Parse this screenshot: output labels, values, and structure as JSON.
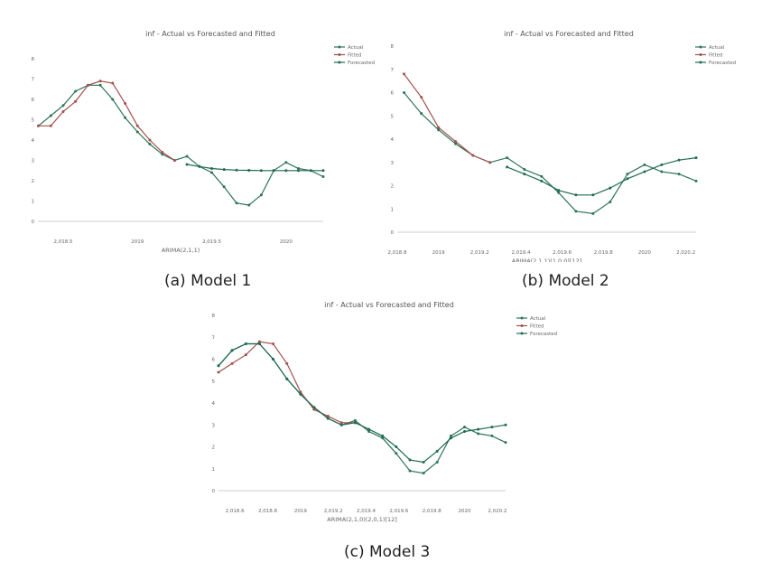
{
  "captions": [
    "(a) Model 1",
    "(b) Model 2",
    "(c) Model 3"
  ],
  "colors": {
    "actual": "#2e7458",
    "fitted": "#a0524e",
    "forecasted": "#1f6b4f",
    "axis": "#cccccc",
    "text": "#555555"
  },
  "chart_data": [
    {
      "type": "line",
      "title": "inf - Actual vs Forecasted and Fitted",
      "xlabel": "ARIMA(2,1,1)",
      "ylabel": "inf",
      "xlim": [
        2018.33,
        2020.25
      ],
      "ylim": [
        0,
        8
      ],
      "x_ticks": [
        2018.5,
        2019,
        2019.5,
        2020
      ],
      "x_tick_labels": [
        "2,018.5",
        "2019",
        "2,019.5",
        "2020"
      ],
      "y_ticks": [
        0,
        1,
        2,
        3,
        4,
        5,
        6,
        7,
        8
      ],
      "legend": "top-right",
      "series": [
        {
          "name": "Actual",
          "x": [
            2018.333,
            2018.417,
            2018.5,
            2018.583,
            2018.667,
            2018.75,
            2018.833,
            2018.917,
            2019.0,
            2019.083,
            2019.167,
            2019.25,
            2019.333,
            2019.417,
            2019.5,
            2019.583,
            2019.667,
            2019.75,
            2019.833,
            2019.917,
            2020.0,
            2020.083,
            2020.167,
            2020.25
          ],
          "y": [
            4.7,
            5.2,
            5.7,
            6.4,
            6.7,
            6.7,
            6.0,
            5.1,
            4.4,
            3.8,
            3.3,
            3.0,
            3.2,
            2.7,
            2.4,
            1.7,
            0.9,
            0.8,
            1.3,
            2.5,
            2.9,
            2.6,
            2.5,
            2.2
          ]
        },
        {
          "name": "Fitted",
          "x": [
            2018.333,
            2018.417,
            2018.5,
            2018.583,
            2018.667,
            2018.75,
            2018.833,
            2018.917,
            2019.0,
            2019.083,
            2019.167,
            2019.25
          ],
          "y": [
            4.7,
            4.7,
            5.4,
            5.9,
            6.7,
            6.9,
            6.8,
            5.8,
            4.7,
            4.0,
            3.4,
            3.0
          ]
        },
        {
          "name": "Forecasted",
          "x": [
            2019.333,
            2019.417,
            2019.5,
            2019.583,
            2019.667,
            2019.75,
            2019.833,
            2019.917,
            2020.0,
            2020.083,
            2020.167,
            2020.25
          ],
          "y": [
            2.8,
            2.7,
            2.6,
            2.55,
            2.52,
            2.51,
            2.5,
            2.5,
            2.5,
            2.5,
            2.5,
            2.5
          ]
        }
      ]
    },
    {
      "type": "line",
      "title": "inf - Actual vs Forecasted and Fitted",
      "xlabel": "ARIMA(2,1,1)(1,0,0)[12]",
      "ylabel": "inf",
      "xlim": [
        2018.8,
        2020.25
      ],
      "ylim": [
        0,
        8
      ],
      "x_ticks": [
        2018.8,
        2019,
        2019.2,
        2019.4,
        2019.6,
        2019.8,
        2020,
        2020.2
      ],
      "x_tick_labels": [
        "2,018.8",
        "2019",
        "2,019.2",
        "2,019.4",
        "2,019.6",
        "2,019.8",
        "2020",
        "2,020.2"
      ],
      "y_ticks": [
        0,
        1,
        2,
        3,
        4,
        5,
        6,
        7,
        8
      ],
      "legend": "top-right",
      "series": [
        {
          "name": "Actual",
          "x": [
            2018.833,
            2018.917,
            2019.0,
            2019.083,
            2019.167,
            2019.25,
            2019.333,
            2019.417,
            2019.5,
            2019.583,
            2019.667,
            2019.75,
            2019.833,
            2019.917,
            2020.0,
            2020.083,
            2020.167,
            2020.25
          ],
          "y": [
            6.0,
            5.1,
            4.4,
            3.8,
            3.3,
            3.0,
            3.2,
            2.7,
            2.4,
            1.7,
            0.9,
            0.8,
            1.3,
            2.5,
            2.9,
            2.6,
            2.5,
            2.2
          ]
        },
        {
          "name": "Fitted",
          "x": [
            2018.833,
            2018.917,
            2019.0,
            2019.083,
            2019.167,
            2019.25
          ],
          "y": [
            6.8,
            5.8,
            4.5,
            3.9,
            3.3,
            3.0
          ]
        },
        {
          "name": "Forecasted",
          "x": [
            2019.333,
            2019.417,
            2019.5,
            2019.583,
            2019.667,
            2019.75,
            2019.833,
            2019.917,
            2020.0,
            2020.083,
            2020.167,
            2020.25
          ],
          "y": [
            2.8,
            2.5,
            2.2,
            1.8,
            1.6,
            1.6,
            1.9,
            2.3,
            2.6,
            2.9,
            3.1,
            3.2
          ]
        }
      ]
    },
    {
      "type": "line",
      "title": "inf - Actual vs Forecasted and Fitted",
      "xlabel": "ARIMA(2,1,0)(2,0,1)[12]",
      "ylabel": "inf",
      "xlim": [
        2018.5,
        2020.25
      ],
      "ylim": [
        0,
        8
      ],
      "x_ticks": [
        2018.6,
        2018.8,
        2019,
        2019.2,
        2019.4,
        2019.6,
        2019.8,
        2020,
        2020.2
      ],
      "x_tick_labels": [
        "2,018.6",
        "2,018.8",
        "2019",
        "2,019.2",
        "2,019.4",
        "2,019.6",
        "2,019.8",
        "2020",
        "2,020.2"
      ],
      "y_ticks": [
        0,
        1,
        2,
        3,
        4,
        5,
        6,
        7,
        8
      ],
      "legend": "top-right",
      "series": [
        {
          "name": "Actual",
          "x": [
            2018.5,
            2018.583,
            2018.667,
            2018.75,
            2018.833,
            2018.917,
            2019.0,
            2019.083,
            2019.167,
            2019.25,
            2019.333,
            2019.417,
            2019.5,
            2019.583,
            2019.667,
            2019.75,
            2019.833,
            2019.917,
            2020.0,
            2020.083,
            2020.167,
            2020.25
          ],
          "y": [
            5.7,
            6.4,
            6.7,
            6.7,
            6.0,
            5.1,
            4.4,
            3.8,
            3.3,
            3.0,
            3.2,
            2.7,
            2.4,
            1.7,
            0.9,
            0.8,
            1.3,
            2.5,
            2.9,
            2.6,
            2.5,
            2.2
          ]
        },
        {
          "name": "Fitted",
          "x": [
            2018.5,
            2018.583,
            2018.667,
            2018.75,
            2018.833,
            2018.917,
            2019.0,
            2019.083,
            2019.167,
            2019.25,
            2019.333
          ],
          "y": [
            5.4,
            5.8,
            6.2,
            6.8,
            6.7,
            5.8,
            4.5,
            3.7,
            3.4,
            3.1,
            3.1
          ]
        },
        {
          "name": "Forecasted",
          "x": [
            2018.5,
            2018.583,
            2018.667,
            2018.75,
            2018.833,
            2018.917,
            2019.0,
            2019.083,
            2019.167,
            2019.25,
            2019.333,
            2019.417,
            2019.5,
            2019.583,
            2019.667,
            2019.75,
            2019.833,
            2019.917,
            2020.0,
            2020.083,
            2020.167,
            2020.25
          ],
          "y": [
            5.7,
            6.4,
            6.7,
            6.7,
            6.0,
            5.1,
            4.4,
            3.8,
            3.3,
            3.0,
            3.1,
            2.8,
            2.5,
            2.0,
            1.4,
            1.3,
            1.8,
            2.4,
            2.7,
            2.8,
            2.9,
            3.0
          ]
        }
      ]
    }
  ]
}
